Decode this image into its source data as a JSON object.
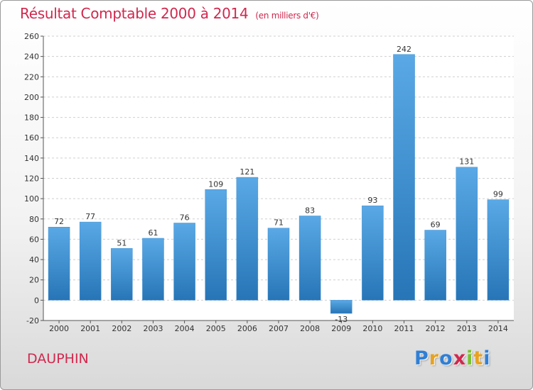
{
  "title": "Résultat Comptable 2000 à 2014",
  "subtitle": "(en milliers d'€)",
  "commune": "DAUPHIN",
  "logo_text": "Proxiti",
  "colors": {
    "bar_light": "#5aa9e6",
    "bar_dark": "#2775b6",
    "title": "#d0284e"
  },
  "chart_data": {
    "type": "bar",
    "categories": [
      "2000",
      "2001",
      "2002",
      "2003",
      "2004",
      "2005",
      "2006",
      "2007",
      "2008",
      "2009",
      "2010",
      "2011",
      "2012",
      "2013",
      "2014"
    ],
    "values": [
      72,
      77,
      51,
      61,
      76,
      109,
      121,
      71,
      83,
      -13,
      93,
      242,
      69,
      131,
      99
    ],
    "ylim": [
      -20,
      260
    ],
    "yticks": [
      -20,
      0,
      20,
      40,
      60,
      80,
      100,
      120,
      140,
      160,
      180,
      200,
      220,
      240,
      260
    ],
    "grid": true
  }
}
